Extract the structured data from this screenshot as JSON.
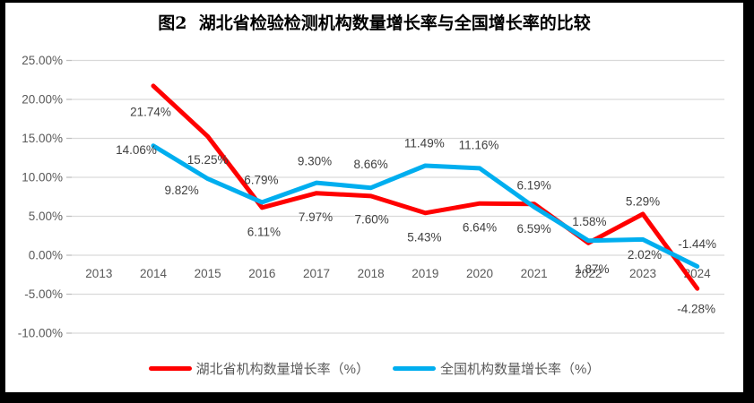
{
  "title": "图2  湖北省检验检测机构数量增长率与全国增长率的比较",
  "colors": {
    "hubei": "#FF0000",
    "national": "#00AEEF",
    "gridline": "#D9D9D9",
    "tick": "#BFBFBF",
    "axis_text": "#595959",
    "data_label_text": "#404040",
    "title_text": "#000000",
    "frame": "#000000",
    "background": "#FFFFFF"
  },
  "chart_data": {
    "type": "line",
    "title": "图2  湖北省检验检测机构数量增长率与全国增长率的比较",
    "categories": [
      "2013",
      "2014",
      "2015",
      "2016",
      "2017",
      "2018",
      "2019",
      "2020",
      "2021",
      "2022",
      "2023",
      "2024"
    ],
    "series": [
      {
        "name": "湖北省机构数量增长率（%）",
        "color_key": "hubei",
        "values": [
          null,
          21.74,
          15.25,
          6.11,
          7.97,
          7.6,
          5.43,
          6.64,
          6.59,
          1.58,
          5.29,
          -4.28
        ],
        "labels": [
          "",
          "21.74%",
          "15.25%",
          "6.11%",
          "7.97%",
          "7.60%",
          "5.43%",
          "6.64%",
          "6.59%",
          "1.58%",
          "5.29%",
          "-4.28%"
        ]
      },
      {
        "name": "全国机构数量增长率（%）",
        "color_key": "national",
        "values": [
          null,
          14.06,
          9.82,
          6.79,
          9.3,
          8.66,
          11.49,
          11.16,
          6.19,
          1.87,
          2.02,
          -1.44
        ],
        "labels": [
          "",
          "14.06%",
          "9.82%",
          "6.79%",
          "9.30%",
          "8.66%",
          "11.49%",
          "11.16%",
          "6.19%",
          "1.87%",
          "2.02%",
          "-1.44%"
        ]
      }
    ],
    "y_axis": {
      "tick_labels": [
        "25.00%",
        "20.00%",
        "15.00%",
        "10.00%",
        "5.00%",
        "0.00%",
        "-5.00%",
        "-10.00%"
      ],
      "tick_values": [
        25,
        20,
        15,
        10,
        5,
        0,
        -5,
        -10
      ],
      "min": -10,
      "max": 25
    },
    "grid": true,
    "legend_position": "bottom"
  }
}
